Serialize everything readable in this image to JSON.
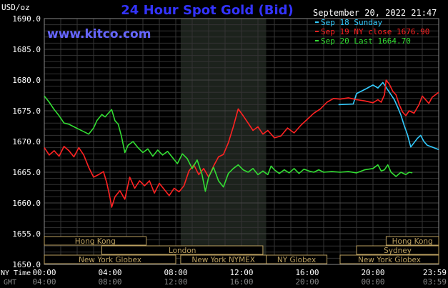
{
  "chart_data": {
    "type": "line",
    "title": "24 Hour Spot Gold (Bid)",
    "site": "www.kitco.com",
    "timestamp": "September 20, 2022 21:47",
    "ylabel": "USD/oz",
    "ylim": [
      1650,
      1690
    ],
    "yticks": [
      "1690.0",
      "1685.0",
      "1680.0",
      "1675.0",
      "1670.0",
      "1665.0",
      "1660.0",
      "1655.0",
      "1650.0"
    ],
    "xlim_hours": [
      0,
      24
    ],
    "xticks": [
      "00:00",
      "04:00",
      "08:00",
      "12:00",
      "16:00",
      "20:00",
      "23:59"
    ],
    "gmt_ticks": [
      "04:00",
      "08:00",
      "12:00",
      "16:00",
      "20:00",
      "00:00",
      "03:59"
    ],
    "axis_labels": {
      "ny_time": "NY Time",
      "gmt": "GMT"
    },
    "grid": true,
    "shaded_period_hours": [
      8.3,
      13.5
    ],
    "legend_position": "top-right",
    "series": [
      {
        "name": "Sep 18 Sunday",
        "color": "#33ccff",
        "points": [
          [
            17.9,
            1676.0
          ],
          [
            18.8,
            1676.1
          ],
          [
            19.0,
            1677.8
          ],
          [
            19.3,
            1678.2
          ],
          [
            19.6,
            1678.6
          ],
          [
            20.0,
            1679.2
          ],
          [
            20.3,
            1678.7
          ],
          [
            20.6,
            1679.6
          ],
          [
            20.9,
            1678.4
          ],
          [
            21.1,
            1677.6
          ],
          [
            21.3,
            1676.8
          ],
          [
            21.5,
            1675.6
          ],
          [
            21.7,
            1674.3
          ],
          [
            21.9,
            1672.6
          ],
          [
            22.1,
            1671.1
          ],
          [
            22.3,
            1669.1
          ],
          [
            22.5,
            1669.8
          ],
          [
            22.7,
            1670.5
          ],
          [
            22.9,
            1671.0
          ],
          [
            23.1,
            1670.0
          ],
          [
            23.3,
            1669.4
          ],
          [
            23.6,
            1669.1
          ],
          [
            23.99,
            1668.7
          ]
        ]
      },
      {
        "name": "Sep 19 NY close 1676.90",
        "color": "#ff2222",
        "points": [
          [
            0.0,
            1669.0
          ],
          [
            0.3,
            1667.8
          ],
          [
            0.6,
            1668.5
          ],
          [
            0.9,
            1667.6
          ],
          [
            1.2,
            1669.2
          ],
          [
            1.5,
            1668.5
          ],
          [
            1.8,
            1667.5
          ],
          [
            2.1,
            1669.0
          ],
          [
            2.4,
            1667.8
          ],
          [
            2.7,
            1665.8
          ],
          [
            3.0,
            1664.2
          ],
          [
            3.3,
            1664.6
          ],
          [
            3.6,
            1665.1
          ],
          [
            3.8,
            1663.3
          ],
          [
            4.0,
            1660.8
          ],
          [
            4.1,
            1659.3
          ],
          [
            4.3,
            1661.0
          ],
          [
            4.6,
            1662.0
          ],
          [
            4.9,
            1660.6
          ],
          [
            5.2,
            1664.2
          ],
          [
            5.5,
            1662.4
          ],
          [
            5.8,
            1663.6
          ],
          [
            6.1,
            1662.8
          ],
          [
            6.4,
            1663.6
          ],
          [
            6.7,
            1661.6
          ],
          [
            7.0,
            1663.2
          ],
          [
            7.3,
            1662.2
          ],
          [
            7.6,
            1661.2
          ],
          [
            7.9,
            1662.4
          ],
          [
            8.2,
            1661.8
          ],
          [
            8.5,
            1662.8
          ],
          [
            8.8,
            1665.2
          ],
          [
            9.1,
            1666.2
          ],
          [
            9.4,
            1664.6
          ],
          [
            9.7,
            1665.6
          ],
          [
            10.0,
            1664.2
          ],
          [
            10.3,
            1666.0
          ],
          [
            10.6,
            1667.5
          ],
          [
            10.9,
            1667.9
          ],
          [
            11.2,
            1669.8
          ],
          [
            11.5,
            1672.4
          ],
          [
            11.8,
            1675.3
          ],
          [
            12.1,
            1674.2
          ],
          [
            12.4,
            1673.0
          ],
          [
            12.7,
            1671.8
          ],
          [
            13.0,
            1672.4
          ],
          [
            13.3,
            1671.2
          ],
          [
            13.6,
            1671.8
          ],
          [
            14.0,
            1670.6
          ],
          [
            14.4,
            1670.9
          ],
          [
            14.8,
            1672.2
          ],
          [
            15.2,
            1671.4
          ],
          [
            15.6,
            1672.6
          ],
          [
            16.0,
            1673.6
          ],
          [
            16.4,
            1674.6
          ],
          [
            16.8,
            1675.3
          ],
          [
            17.2,
            1676.4
          ],
          [
            17.6,
            1677.0
          ],
          [
            18.0,
            1676.9
          ],
          [
            18.5,
            1677.1
          ],
          [
            19.0,
            1676.8
          ],
          [
            19.5,
            1676.6
          ],
          [
            20.0,
            1676.3
          ],
          [
            20.3,
            1676.8
          ],
          [
            20.5,
            1676.4
          ],
          [
            20.7,
            1677.6
          ],
          [
            20.8,
            1680.0
          ],
          [
            21.0,
            1679.3
          ],
          [
            21.2,
            1678.2
          ],
          [
            21.4,
            1677.6
          ],
          [
            21.6,
            1676.0
          ],
          [
            21.8,
            1674.8
          ],
          [
            22.0,
            1674.2
          ],
          [
            22.2,
            1675.0
          ],
          [
            22.5,
            1674.6
          ],
          [
            22.8,
            1676.0
          ],
          [
            23.0,
            1677.4
          ],
          [
            23.2,
            1676.8
          ],
          [
            23.4,
            1676.2
          ],
          [
            23.6,
            1677.2
          ],
          [
            23.99,
            1678.0
          ]
        ]
      },
      {
        "name": "Sep 20 Last 1664.70",
        "color": "#33dd33",
        "points": [
          [
            0.0,
            1677.4
          ],
          [
            0.3,
            1676.4
          ],
          [
            0.6,
            1675.2
          ],
          [
            0.9,
            1674.2
          ],
          [
            1.2,
            1673.0
          ],
          [
            1.5,
            1672.8
          ],
          [
            1.8,
            1672.4
          ],
          [
            2.1,
            1672.0
          ],
          [
            2.4,
            1671.6
          ],
          [
            2.7,
            1671.2
          ],
          [
            3.0,
            1672.2
          ],
          [
            3.2,
            1673.4
          ],
          [
            3.5,
            1674.4
          ],
          [
            3.7,
            1674.0
          ],
          [
            3.9,
            1674.6
          ],
          [
            4.1,
            1675.2
          ],
          [
            4.3,
            1673.4
          ],
          [
            4.5,
            1672.8
          ],
          [
            4.7,
            1670.8
          ],
          [
            4.9,
            1668.2
          ],
          [
            5.1,
            1669.4
          ],
          [
            5.4,
            1670.0
          ],
          [
            5.7,
            1669.0
          ],
          [
            6.0,
            1668.2
          ],
          [
            6.3,
            1668.8
          ],
          [
            6.6,
            1667.6
          ],
          [
            6.9,
            1668.6
          ],
          [
            7.2,
            1667.8
          ],
          [
            7.5,
            1668.4
          ],
          [
            7.8,
            1667.4
          ],
          [
            8.1,
            1666.4
          ],
          [
            8.4,
            1668.0
          ],
          [
            8.7,
            1667.2
          ],
          [
            9.0,
            1665.6
          ],
          [
            9.3,
            1667.0
          ],
          [
            9.6,
            1664.6
          ],
          [
            9.8,
            1661.9
          ],
          [
            10.0,
            1664.2
          ],
          [
            10.3,
            1665.8
          ],
          [
            10.6,
            1663.6
          ],
          [
            10.9,
            1662.6
          ],
          [
            11.2,
            1664.8
          ],
          [
            11.5,
            1665.6
          ],
          [
            11.8,
            1666.2
          ],
          [
            12.1,
            1665.4
          ],
          [
            12.4,
            1665.0
          ],
          [
            12.7,
            1665.6
          ],
          [
            13.0,
            1664.6
          ],
          [
            13.3,
            1665.2
          ],
          [
            13.6,
            1664.6
          ],
          [
            13.8,
            1666.0
          ],
          [
            14.0,
            1665.4
          ],
          [
            14.3,
            1664.8
          ],
          [
            14.6,
            1665.4
          ],
          [
            14.9,
            1664.9
          ],
          [
            15.2,
            1665.6
          ],
          [
            15.5,
            1664.8
          ],
          [
            15.8,
            1665.5
          ],
          [
            16.1,
            1665.2
          ],
          [
            16.4,
            1665.0
          ],
          [
            16.7,
            1665.4
          ],
          [
            17.0,
            1665.0
          ],
          [
            17.5,
            1665.1
          ],
          [
            18.0,
            1665.0
          ],
          [
            18.5,
            1665.1
          ],
          [
            19.0,
            1664.9
          ],
          [
            19.5,
            1665.4
          ],
          [
            20.0,
            1665.6
          ],
          [
            20.3,
            1666.2
          ],
          [
            20.5,
            1665.2
          ],
          [
            20.7,
            1665.4
          ],
          [
            20.9,
            1666.2
          ],
          [
            21.1,
            1665.0
          ],
          [
            21.4,
            1664.3
          ],
          [
            21.7,
            1665.0
          ],
          [
            22.0,
            1664.6
          ],
          [
            22.2,
            1665.0
          ],
          [
            22.4,
            1664.9
          ]
        ]
      }
    ]
  },
  "sessions": {
    "row1": [
      {
        "label": "Hong Kong",
        "start": 0,
        "end": 6.2
      },
      {
        "label": "Hong Kong",
        "start": 20.8,
        "end": 24
      }
    ],
    "row2": [
      {
        "label": "London",
        "start": 3.5,
        "end": 13.3
      },
      {
        "label": "Sydney",
        "start": 19.0,
        "end": 24
      }
    ],
    "row3": [
      {
        "label": "New York Globex",
        "start": 0,
        "end": 8.0
      },
      {
        "label": "New York NYMEX",
        "start": 8.3,
        "end": 13.5
      },
      {
        "label": "NY Globex",
        "start": 13.5,
        "end": 17.2
      },
      {
        "label": "New York Globex",
        "start": 18.0,
        "end": 24
      }
    ]
  },
  "colors": {
    "background": "#000000",
    "grid": "#333333",
    "axis_text": "#ffffff",
    "gmt_text": "#888888",
    "title": "#3333ff",
    "site": "#6666ff",
    "timestamp": "#ffffff",
    "shaded": "#1c221c",
    "session_border": "#bba060",
    "session_text": "#bba060"
  }
}
